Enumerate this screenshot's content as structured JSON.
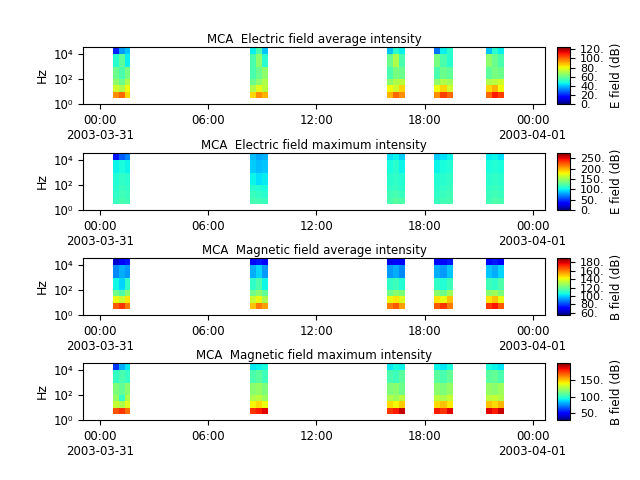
{
  "chart_data": [
    {
      "type": "heatmap",
      "title": "MCA  Electric field average intensity",
      "y_label": "Hz",
      "log": "y",
      "xlim": [
        -0.95,
        24.7
      ],
      "xticks": [
        {
          "value": 0,
          "label": "00:00\n2003-03-31"
        },
        {
          "value": 6,
          "label": "06:00"
        },
        {
          "value": 12,
          "label": "12:00"
        },
        {
          "value": 18,
          "label": "18:00"
        },
        {
          "value": 24,
          "label": "00:00\n2003-04-01"
        }
      ],
      "ylim": [
        1,
        40000
      ],
      "yticks": [
        {
          "value": 1,
          "label": "10⁰"
        },
        {
          "value": 100,
          "label": "10²"
        },
        {
          "value": 10000,
          "label": "10⁴"
        }
      ],
      "colorbar_label": "E field (dB)",
      "colorbar_range": [
        0,
        125
      ],
      "colorbar_ticks": [
        {
          "value": 0,
          "label": "0."
        },
        {
          "value": 20,
          "label": "20."
        },
        {
          "value": 40,
          "label": "40."
        },
        {
          "value": 60,
          "label": "60."
        },
        {
          "value": 80,
          "label": "80."
        },
        {
          "value": 100,
          "label": "100."
        },
        {
          "value": 120,
          "label": "120."
        }
      ],
      "y_edges": [
        3.2,
        10,
        32,
        100,
        1000,
        10000,
        40000
      ],
      "segments": [
        {
          "x": [
            0.72,
            1.04,
            1.36,
            1.67
          ],
          "cells": [
            [
              95,
              100,
              85
            ],
            [
              75,
              70,
              80
            ],
            [
              65,
              60,
              70
            ],
            [
              60,
              55,
              62
            ],
            [
              50,
              58,
              45
            ],
            [
              20,
              35,
              40
            ]
          ]
        },
        {
          "x": [
            8.3,
            8.63,
            8.96,
            9.3
          ],
          "cells": [
            [
              85,
              95,
              90
            ],
            [
              70,
              78,
              72
            ],
            [
              60,
              65,
              70
            ],
            [
              55,
              60,
              65
            ],
            [
              55,
              65,
              50
            ],
            [
              45,
              55,
              40
            ]
          ]
        },
        {
          "x": [
            15.9,
            16.23,
            16.56,
            16.9
          ],
          "cells": [
            [
              90,
              100,
              95
            ],
            [
              80,
              75,
              85
            ],
            [
              65,
              70,
              72
            ],
            [
              55,
              62,
              60
            ],
            [
              60,
              70,
              55
            ],
            [
              40,
              50,
              45
            ]
          ]
        },
        {
          "x": [
            18.5,
            18.87,
            19.23,
            19.6
          ],
          "cells": [
            [
              95,
              105,
              100
            ],
            [
              80,
              85,
              75
            ],
            [
              65,
              70,
              68
            ],
            [
              55,
              60,
              58
            ],
            [
              62,
              55,
              50
            ],
            [
              30,
              45,
              50
            ]
          ]
        },
        {
          "x": [
            21.4,
            21.73,
            22.06,
            22.4
          ],
          "cells": [
            [
              100,
              110,
              105
            ],
            [
              85,
              90,
              80
            ],
            [
              70,
              72,
              75
            ],
            [
              58,
              62,
              60
            ],
            [
              65,
              60,
              55
            ],
            [
              40,
              50,
              45
            ]
          ]
        }
      ]
    },
    {
      "type": "heatmap",
      "title": "MCA  Electric field maximum intensity",
      "y_label": "Hz",
      "log": "y",
      "xlim": [
        -0.95,
        24.7
      ],
      "xticks": [
        {
          "value": 0,
          "label": "00:00\n2003-03-31"
        },
        {
          "value": 6,
          "label": "06:00"
        },
        {
          "value": 12,
          "label": "12:00"
        },
        {
          "value": 18,
          "label": "18:00"
        },
        {
          "value": 24,
          "label": "00:00\n2003-04-01"
        }
      ],
      "ylim": [
        1,
        40000
      ],
      "yticks": [
        {
          "value": 1,
          "label": "10⁰"
        },
        {
          "value": 100,
          "label": "10²"
        },
        {
          "value": 10000,
          "label": "10⁴"
        }
      ],
      "colorbar_label": "E field (dB)",
      "colorbar_range": [
        0,
        275
      ],
      "colorbar_ticks": [
        {
          "value": 0,
          "label": "0."
        },
        {
          "value": 50,
          "label": "50."
        },
        {
          "value": 100,
          "label": "100."
        },
        {
          "value": 150,
          "label": "150."
        },
        {
          "value": 200,
          "label": "200."
        },
        {
          "value": 250,
          "label": "250."
        }
      ],
      "y_edges": [
        3.2,
        10,
        32,
        100,
        1000,
        10000,
        40000
      ],
      "segments": [
        {
          "x": [
            0.72,
            1.04,
            1.36,
            1.67
          ],
          "cells": [
            [
              115,
              120,
              118
            ],
            [
              112,
              118,
              115
            ],
            [
              110,
              115,
              112
            ],
            [
              108,
              112,
              110
            ],
            [
              100,
              105,
              100
            ],
            [
              40,
              60,
              70
            ]
          ]
        },
        {
          "x": [
            8.3,
            8.63,
            8.96,
            9.3
          ],
          "cells": [
            [
              120,
              118,
              115
            ],
            [
              115,
              112,
              110
            ],
            [
              110,
              108,
              105
            ],
            [
              100,
              95,
              98
            ],
            [
              90,
              85,
              88
            ],
            [
              85,
              80,
              82
            ]
          ]
        },
        {
          "x": [
            15.9,
            16.23,
            16.56,
            16.9
          ],
          "cells": [
            [
              120,
              125,
              122
            ],
            [
              118,
              120,
              115
            ],
            [
              112,
              115,
              110
            ],
            [
              110,
              112,
              108
            ],
            [
              105,
              110,
              100
            ],
            [
              95,
              100,
              90
            ]
          ]
        },
        {
          "x": [
            18.5,
            18.87,
            19.23,
            19.6
          ],
          "cells": [
            [
              115,
              118,
              120
            ],
            [
              112,
              115,
              118
            ],
            [
              110,
              112,
              115
            ],
            [
              108,
              110,
              112
            ],
            [
              100,
              105,
              108
            ],
            [
              90,
              95,
              100
            ]
          ]
        },
        {
          "x": [
            21.4,
            21.73,
            22.06,
            22.4
          ],
          "cells": [
            [
              118,
              122,
              120
            ],
            [
              115,
              118,
              116
            ],
            [
              112,
              115,
              112
            ],
            [
              110,
              112,
              110
            ],
            [
              105,
              108,
              105
            ],
            [
              98,
              100,
              95
            ]
          ]
        }
      ]
    },
    {
      "type": "heatmap",
      "title": "MCA  Magnetic field average intensity",
      "y_label": "Hz",
      "log": "y",
      "xlim": [
        -0.95,
        24.7
      ],
      "xticks": [
        {
          "value": 0,
          "label": "00:00\n2003-03-31"
        },
        {
          "value": 6,
          "label": "06:00"
        },
        {
          "value": 12,
          "label": "12:00"
        },
        {
          "value": 18,
          "label": "18:00"
        },
        {
          "value": 24,
          "label": "00:00\n2003-04-01"
        }
      ],
      "ylim": [
        1,
        40000
      ],
      "yticks": [
        {
          "value": 1,
          "label": "10⁰"
        },
        {
          "value": 100,
          "label": "10²"
        },
        {
          "value": 10000,
          "label": "10⁴"
        }
      ],
      "colorbar_label": "B field (dB)",
      "colorbar_range": [
        55,
        190
      ],
      "colorbar_ticks": [
        {
          "value": 60,
          "label": "60."
        },
        {
          "value": 80,
          "label": "80."
        },
        {
          "value": 100,
          "label": "100."
        },
        {
          "value": 120,
          "label": "120."
        },
        {
          "value": 140,
          "label": "140."
        },
        {
          "value": 160,
          "label": "160."
        },
        {
          "value": 180,
          "label": "180."
        }
      ],
      "y_edges": [
        3.2,
        10,
        32,
        100,
        1000,
        10000,
        40000
      ],
      "segments": [
        {
          "x": [
            0.72,
            1.04,
            1.36,
            1.67
          ],
          "cells": [
            [
              165,
              170,
              160
            ],
            [
              140,
              135,
              145
            ],
            [
              120,
              115,
              125
            ],
            [
              105,
              100,
              110
            ],
            [
              90,
              95,
              92
            ],
            [
              65,
              70,
              75
            ]
          ]
        },
        {
          "x": [
            8.3,
            8.63,
            8.96,
            9.3
          ],
          "cells": [
            [
              150,
              160,
              155
            ],
            [
              135,
              140,
              130
            ],
            [
              120,
              125,
              118
            ],
            [
              110,
              115,
              105
            ],
            [
              95,
              100,
              92
            ],
            [
              70,
              75,
              72
            ]
          ]
        },
        {
          "x": [
            15.9,
            16.23,
            16.56,
            16.9
          ],
          "cells": [
            [
              160,
              165,
              155
            ],
            [
              140,
              145,
              138
            ],
            [
              120,
              125,
              122
            ],
            [
              110,
              112,
              108
            ],
            [
              92,
              95,
              90
            ],
            [
              68,
              72,
              70
            ]
          ]
        },
        {
          "x": [
            18.5,
            18.87,
            19.23,
            19.6
          ],
          "cells": [
            [
              165,
              170,
              160
            ],
            [
              145,
              140,
              150
            ],
            [
              125,
              120,
              128
            ],
            [
              110,
              108,
              112
            ],
            [
              95,
              92,
              98
            ],
            [
              72,
              70,
              75
            ]
          ]
        },
        {
          "x": [
            21.4,
            21.73,
            22.06,
            22.4
          ],
          "cells": [
            [
              170,
              175,
              165
            ],
            [
              145,
              150,
              140
            ],
            [
              125,
              128,
              122
            ],
            [
              112,
              110,
              115
            ],
            [
              98,
              95,
              100
            ],
            [
              72,
              75,
              70
            ]
          ]
        }
      ]
    },
    {
      "type": "heatmap",
      "title": "MCA  Magnetic field maximum intensity",
      "y_label": "Hz",
      "log": "y",
      "xlim": [
        -0.95,
        24.7
      ],
      "xticks": [
        {
          "value": 0,
          "label": "00:00\n2003-03-31"
        },
        {
          "value": 6,
          "label": "06:00"
        },
        {
          "value": 12,
          "label": "12:00"
        },
        {
          "value": 18,
          "label": "18:00"
        },
        {
          "value": 24,
          "label": "00:00\n2003-04-01"
        }
      ],
      "ylim": [
        1,
        40000
      ],
      "yticks": [
        {
          "value": 1,
          "label": "10⁰"
        },
        {
          "value": 100,
          "label": "10²"
        },
        {
          "value": 10000,
          "label": "10⁴"
        }
      ],
      "colorbar_label": "B field (dB)",
      "colorbar_range": [
        30,
        200
      ],
      "colorbar_ticks": [
        {
          "value": 50,
          "label": "50."
        },
        {
          "value": 100,
          "label": "100."
        },
        {
          "value": 150,
          "label": "150."
        }
      ],
      "y_edges": [
        3.2,
        10,
        32,
        100,
        1000,
        10000,
        40000
      ],
      "segments": [
        {
          "x": [
            0.72,
            1.04,
            1.36,
            1.67
          ],
          "cells": [
            [
              170,
              175,
              165
            ],
            [
              130,
              125,
              135
            ],
            [
              120,
              100,
              125
            ],
            [
              115,
              110,
              118
            ],
            [
              100,
              105,
              100
            ],
            [
              60,
              80,
              90
            ]
          ]
        },
        {
          "x": [
            8.3,
            8.63,
            8.96,
            9.3
          ],
          "cells": [
            [
              175,
              180,
              185
            ],
            [
              140,
              145,
              138
            ],
            [
              125,
              128,
              122
            ],
            [
              118,
              120,
              115
            ],
            [
              105,
              108,
              102
            ],
            [
              90,
              92,
              95
            ]
          ]
        },
        {
          "x": [
            15.9,
            16.23,
            16.56,
            16.9
          ],
          "cells": [
            [
              175,
              180,
              190
            ],
            [
              145,
              140,
              148
            ],
            [
              125,
              122,
              128
            ],
            [
              115,
              118,
              112
            ],
            [
              105,
              102,
              108
            ],
            [
              90,
              95,
              92
            ]
          ]
        },
        {
          "x": [
            18.5,
            18.87,
            19.23,
            19.6
          ],
          "cells": [
            [
              180,
              175,
              185
            ],
            [
              145,
              150,
              142
            ],
            [
              128,
              125,
              130
            ],
            [
              118,
              115,
              120
            ],
            [
              108,
              105,
              110
            ],
            [
              92,
              90,
              95
            ]
          ]
        },
        {
          "x": [
            21.4,
            21.73,
            22.06,
            22.4
          ],
          "cells": [
            [
              185,
              180,
              190
            ],
            [
              150,
              145,
              152
            ],
            [
              128,
              130,
              125
            ],
            [
              120,
              118,
              122
            ],
            [
              108,
              110,
              105
            ],
            [
              95,
              92,
              90
            ]
          ]
        }
      ]
    }
  ]
}
